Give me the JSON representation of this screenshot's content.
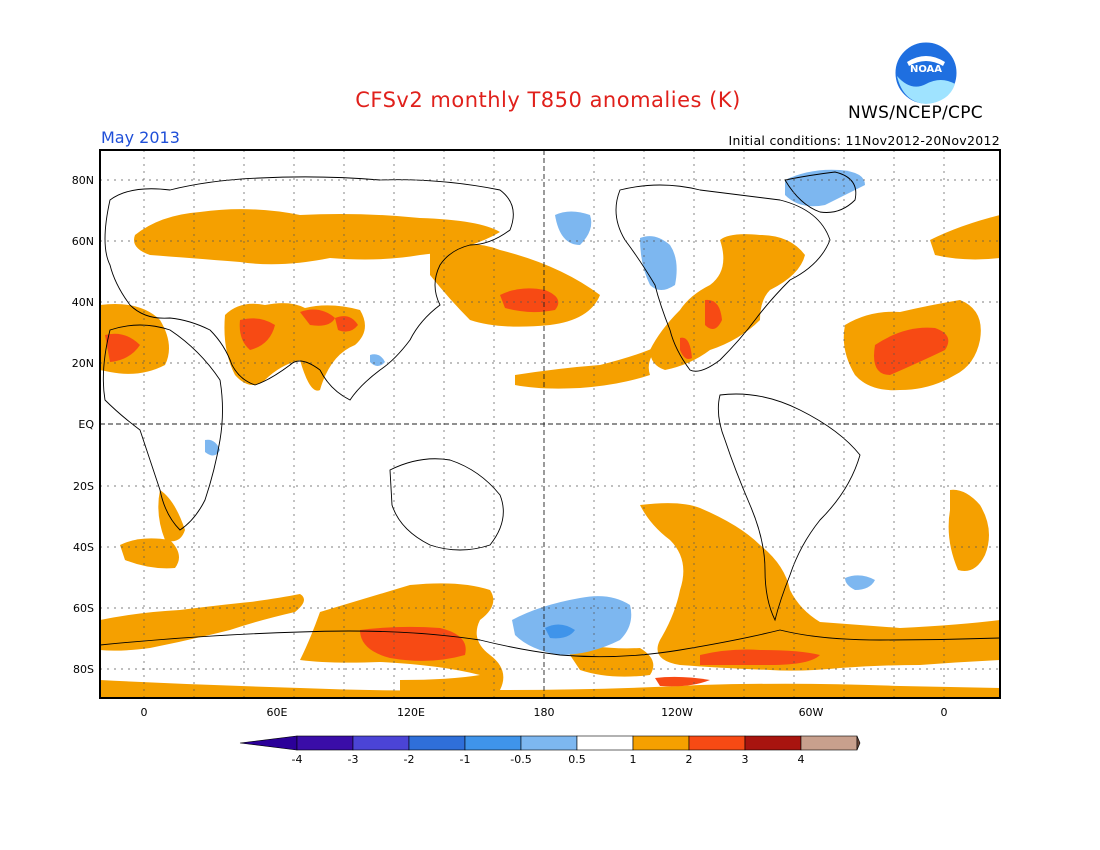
{
  "header": {
    "title": "CFSv2 monthly T850 anomalies (K)",
    "organization": "NWS/NCEP/CPC",
    "logo_text": "NOAA",
    "valid_month": "May 2013",
    "initial_conditions": "Initial conditions: 11Nov2012-20Nov2012"
  },
  "map": {
    "lat_labels": [
      "80N",
      "60N",
      "40N",
      "20N",
      "EQ",
      "20S",
      "40S",
      "60S",
      "80S"
    ],
    "lon_labels": [
      "0",
      "60E",
      "120E",
      "180",
      "120W",
      "60W",
      "0"
    ]
  },
  "colorbar": {
    "tick_labels": [
      "-4",
      "-3",
      "-2",
      "-1",
      "-0.5",
      "0.5",
      "1",
      "2",
      "3",
      "4"
    ],
    "colors": [
      "#3a0da8",
      "#4b44d6",
      "#2f6fd9",
      "#3f94ea",
      "#7db7f0",
      "#ffffff",
      "#f5a000",
      "#f74a14",
      "#a8140f",
      "#c8a08d"
    ],
    "end_colors": [
      "#2b0099",
      "#6e4a3c"
    ]
  },
  "colors": {
    "title": "#e0201b",
    "month": "#1f4fd8",
    "anomaly_0.5_1": "#f5a000",
    "anomaly_1_2": "#f74a14",
    "anomaly_2_3": "#a8140f",
    "anomaly_-1_-0.5": "#7db7f0",
    "anomaly_-2_-1": "#3f94ea"
  }
}
